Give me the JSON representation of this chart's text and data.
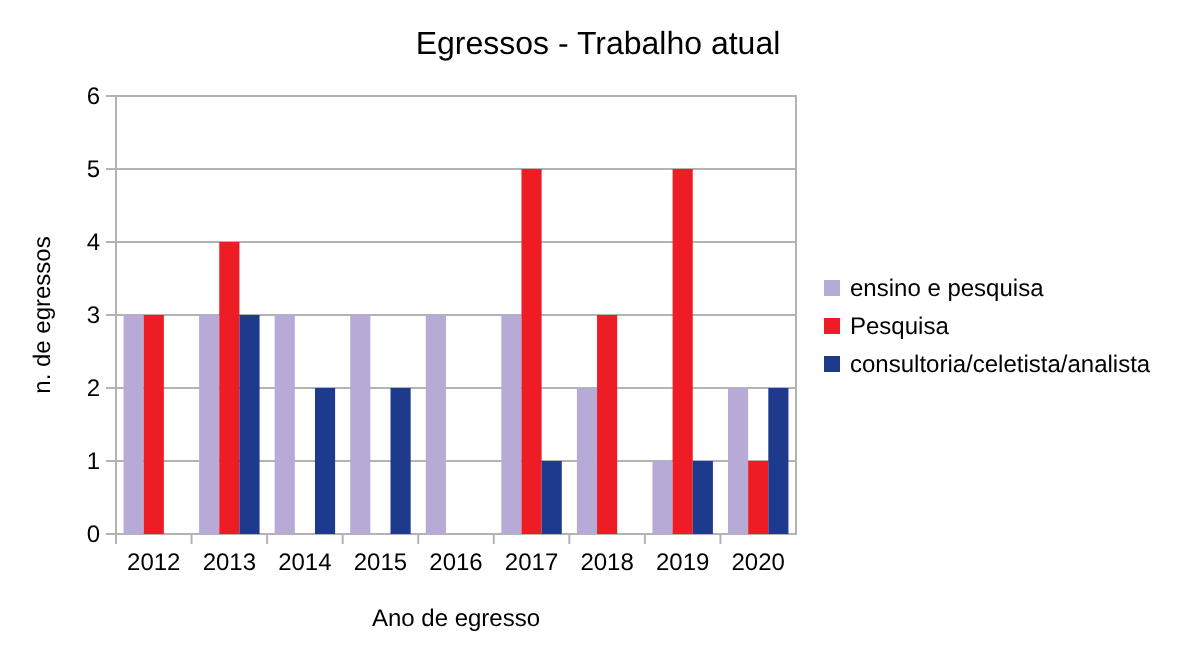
{
  "chart_data": {
    "type": "bar",
    "title": "Egressos - Trabalho atual",
    "xlabel": "Ano de egresso",
    "ylabel": "n. de egressos",
    "categories": [
      "2012",
      "2013",
      "2014",
      "2015",
      "2016",
      "2017",
      "2018",
      "2019",
      "2020"
    ],
    "series": [
      {
        "name": "ensino e pesquisa",
        "color": "#b8aad6",
        "values": [
          3,
          3,
          3,
          3,
          3,
          3,
          2,
          1,
          2
        ]
      },
      {
        "name": "Pesquisa",
        "color": "#ee1c25",
        "values": [
          3,
          4,
          0,
          0,
          0,
          5,
          3,
          5,
          1
        ]
      },
      {
        "name": "consultoria/celetista/analista",
        "color": "#1e3a8c",
        "values": [
          0,
          3,
          2,
          2,
          0,
          1,
          0,
          1,
          2
        ]
      }
    ],
    "ylim": [
      0,
      6
    ],
    "yticks": [
      0,
      1,
      2,
      3,
      4,
      5,
      6
    ],
    "grid": "y",
    "legend": "right"
  }
}
